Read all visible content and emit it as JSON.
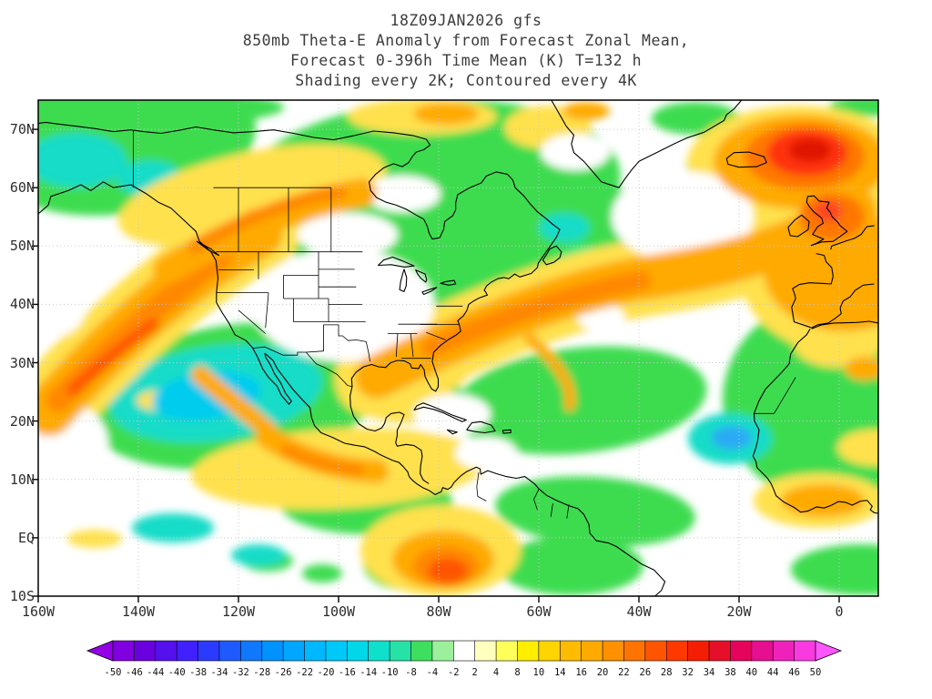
{
  "title": {
    "line1": "18Z09JAN2026 gfs",
    "line2": "850mb Theta-E Anomaly from Forecast Zonal Mean,",
    "line3": "Forecast 0-396h Time Mean (K) T=132 h",
    "line4": "Shading every 2K; Contoured every 4K"
  },
  "map": {
    "lat_labels": [
      "70N",
      "60N",
      "50N",
      "40N",
      "30N",
      "20N",
      "10N",
      "EQ",
      "10S"
    ],
    "lon_labels": [
      "160W",
      "140W",
      "120W",
      "100W",
      "80W",
      "60W",
      "40W",
      "20W",
      "0"
    ]
  },
  "colorbar": {
    "labels": [
      "-50",
      "-46",
      "-44",
      "-40",
      "-38",
      "-34",
      "-32",
      "-28",
      "-26",
      "-22",
      "-20",
      "-16",
      "-14",
      "-10",
      "-8",
      "-4",
      "-2",
      "2",
      "4",
      "8",
      "10",
      "14",
      "16",
      "20",
      "22",
      "26",
      "28",
      "32",
      "34",
      "38",
      "40",
      "44",
      "46",
      "50"
    ],
    "colors": [
      "#9400e6",
      "#8000e0",
      "#6a00dd",
      "#5510ee",
      "#4020ff",
      "#2a3bff",
      "#1e5aff",
      "#0f78ff",
      "#0092ff",
      "#00a6ff",
      "#00b8ff",
      "#00c8f8",
      "#00d8e8",
      "#0ee0cc",
      "#26e2a6",
      "#3ede5e",
      "#9cf09c",
      "#ffffff",
      "#ffffbe",
      "#ffff5a",
      "#ffee00",
      "#ffd400",
      "#ffbb00",
      "#ffaa00",
      "#ff9000",
      "#ff7300",
      "#ff5500",
      "#ff3800",
      "#f51e05",
      "#e60f2a",
      "#e6035c",
      "#e60f8f",
      "#ee22bb",
      "#f83ae0",
      "#ff55ff"
    ]
  }
}
